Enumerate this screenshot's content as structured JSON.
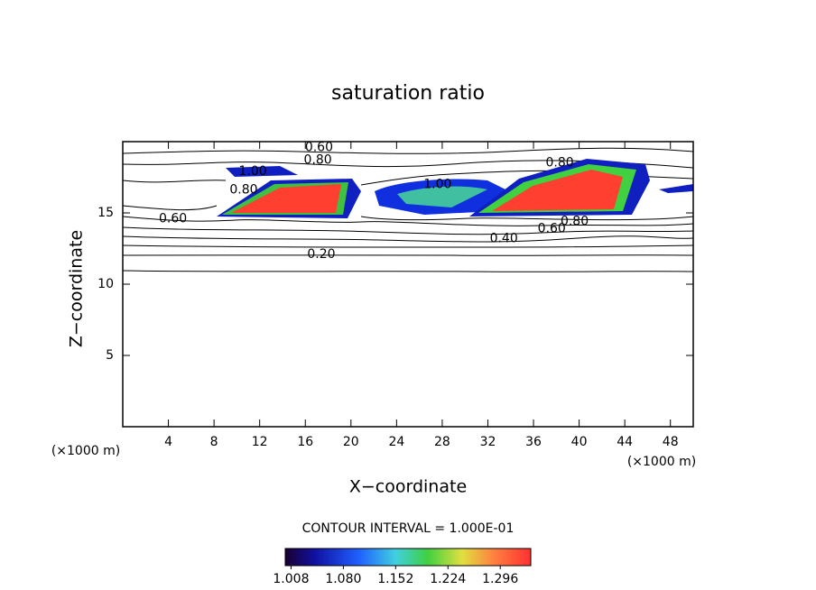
{
  "chart_data": {
    "type": "contour",
    "title": "saturation ratio",
    "xlabel": "X−coordinate",
    "ylabel": "Z−coordinate",
    "x_unit": "(×1000 m)",
    "y_unit": "(×1000 m)",
    "xlim": [
      0,
      50
    ],
    "xticks": [
      4,
      8,
      12,
      16,
      20,
      24,
      28,
      32,
      36,
      40,
      44,
      48
    ],
    "ylim": [
      0,
      20
    ],
    "yticks": [
      5,
      10,
      15
    ],
    "contour_labels": [
      {
        "value": 0.6,
        "label": "0.60",
        "x": 17.2,
        "y": 19.6
      },
      {
        "value": 0.8,
        "label": "0.80",
        "x": 17.1,
        "y": 18.7
      },
      {
        "value": 1.0,
        "label": "1.00",
        "x": 11.4,
        "y": 17.9
      },
      {
        "value": 0.8,
        "label": "0.80",
        "x": 10.6,
        "y": 16.6
      },
      {
        "value": 0.6,
        "label": "0.60",
        "x": 4.4,
        "y": 14.6
      },
      {
        "value": 1.0,
        "label": "1.00",
        "x": 27.6,
        "y": 17.0
      },
      {
        "value": 0.8,
        "label": "0.80",
        "x": 38.3,
        "y": 18.5
      },
      {
        "value": 0.8,
        "label": "0.80",
        "x": 39.6,
        "y": 14.4
      },
      {
        "value": 0.6,
        "label": "0.60",
        "x": 37.6,
        "y": 13.9
      },
      {
        "value": 0.4,
        "label": "0.40",
        "x": 33.4,
        "y": 13.2
      },
      {
        "value": 0.2,
        "label": "0.20",
        "x": 17.4,
        "y": 12.1
      }
    ],
    "contour_interval": "CONTOUR INTERVAL = 1.000E-01",
    "colorbar_lim": [
      1.0,
      1.338
    ],
    "colorbar_ticks": [
      1.008,
      {
        "value": 1.08,
        "label": "1.080"
      },
      1.152,
      1.224,
      1.296
    ]
  }
}
